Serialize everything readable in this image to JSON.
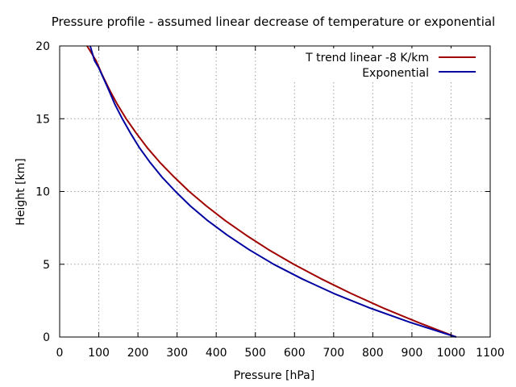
{
  "chart_data": {
    "type": "line",
    "title": "Pressure profile - assumed linear decrease of temperature or exponential",
    "xlabel": "Pressure [hPa]",
    "ylabel": "Height [km]",
    "xlim": [
      0,
      1100
    ],
    "ylim": [
      0,
      20
    ],
    "xticks": [
      0,
      100,
      200,
      300,
      400,
      500,
      600,
      700,
      800,
      900,
      1000,
      1100
    ],
    "yticks": [
      0,
      5,
      10,
      15,
      20
    ],
    "grid": true,
    "legend_position": "top-right",
    "series": [
      {
        "name": "T trend linear -8 K/km",
        "color": "#a00000",
        "points": [
          [
            1013,
            0
          ],
          [
            916,
            1
          ],
          [
            826,
            2
          ],
          [
            744,
            3
          ],
          [
            668,
            4
          ],
          [
            598,
            5
          ],
          [
            534,
            6
          ],
          [
            476,
            7
          ],
          [
            423,
            8
          ],
          [
            375,
            9
          ],
          [
            331,
            10
          ],
          [
            292,
            11
          ],
          [
            256,
            12
          ],
          [
            224,
            13
          ],
          [
            196,
            14
          ],
          [
            170,
            15
          ],
          [
            147,
            16
          ],
          [
            127,
            17
          ],
          [
            109,
            18
          ],
          [
            93,
            19
          ],
          [
            70,
            20
          ]
        ]
      },
      {
        "name": "Exponential",
        "color": "#0000a0",
        "points": [
          [
            1013,
            0
          ],
          [
            896,
            1
          ],
          [
            792,
            2
          ],
          [
            700,
            3
          ],
          [
            619,
            4
          ],
          [
            547,
            5
          ],
          [
            484,
            6
          ],
          [
            428,
            7
          ],
          [
            378,
            8
          ],
          [
            334,
            9
          ],
          [
            296,
            10
          ],
          [
            261,
            11
          ],
          [
            231,
            12
          ],
          [
            204,
            13
          ],
          [
            181,
            14
          ],
          [
            160,
            15
          ],
          [
            141,
            16
          ],
          [
            125,
            17
          ],
          [
            100,
            18.5
          ],
          [
            89,
            19
          ],
          [
            78,
            20
          ]
        ]
      }
    ]
  }
}
